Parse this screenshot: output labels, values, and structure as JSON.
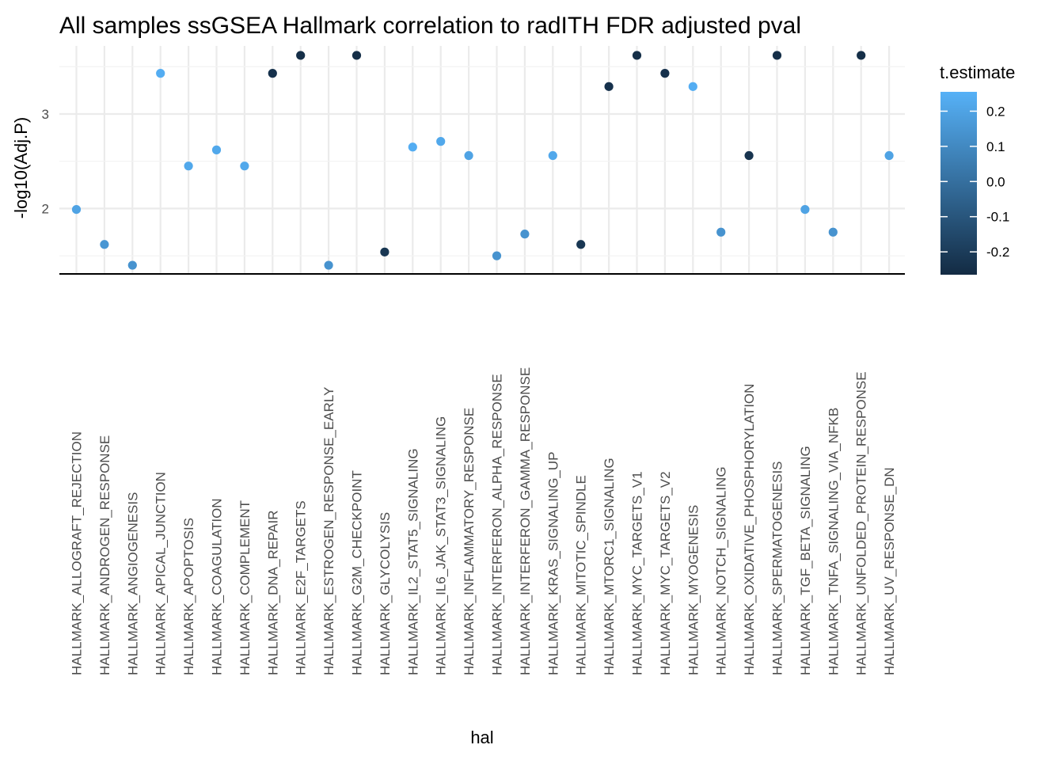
{
  "chart_data": {
    "type": "scatter",
    "title": "All samples ssGSEA Hallmark correlation to radITH FDR adjusted pval",
    "xlabel": "hal",
    "ylabel": "-log10(Adj.P)",
    "yticks": [
      2,
      3
    ],
    "ylim": [
      1.3,
      3.72
    ],
    "reference_line_y": 1.3,
    "grid": true,
    "legend": {
      "title": "t.estimate",
      "placement": "right",
      "min": -0.265,
      "max": 0.255,
      "ticks": [
        0.2,
        0.1,
        0.0,
        -0.1,
        -0.2
      ],
      "tick_labels": [
        "0.2",
        "0.1",
        "0.0",
        "-0.1",
        "-0.2"
      ],
      "low_color": "#132b43",
      "high_color": "#56b1f7"
    },
    "categories": [
      "HALLMARK_ALLOGRAFT_REJECTION",
      "HALLMARK_ANDROGEN_RESPONSE",
      "HALLMARK_ANGIOGENESIS",
      "HALLMARK_APICAL_JUNCTION",
      "HALLMARK_APOPTOSIS",
      "HALLMARK_COAGULATION",
      "HALLMARK_COMPLEMENT",
      "HALLMARK_DNA_REPAIR",
      "HALLMARK_E2F_TARGETS",
      "HALLMARK_ESTROGEN_RESPONSE_EARLY",
      "HALLMARK_G2M_CHECKPOINT",
      "HALLMARK_GLYCOLYSIS",
      "HALLMARK_IL2_STAT5_SIGNALING",
      "HALLMARK_IL6_JAK_STAT3_SIGNALING",
      "HALLMARK_INFLAMMATORY_RESPONSE",
      "HALLMARK_INTERFERON_ALPHA_RESPONSE",
      "HALLMARK_INTERFERON_GAMMA_RESPONSE",
      "HALLMARK_KRAS_SIGNALING_UP",
      "HALLMARK_MITOTIC_SPINDLE",
      "HALLMARK_MTORC1_SIGNALING",
      "HALLMARK_MYC_TARGETS_V1",
      "HALLMARK_MYC_TARGETS_V2",
      "HALLMARK_MYOGENESIS",
      "HALLMARK_NOTCH_SIGNALING",
      "HALLMARK_OXIDATIVE_PHOSPHORYLATION",
      "HALLMARK_SPERMATOGENESIS",
      "HALLMARK_TGF_BETA_SIGNALING",
      "HALLMARK_TNFA_SIGNALING_VIA_NFKB",
      "HALLMARK_UNFOLDED_PROTEIN_RESPONSE",
      "HALLMARK_UV_RESPONSE_DN"
    ],
    "values": [
      1.99,
      1.62,
      1.4,
      3.43,
      2.45,
      2.62,
      2.45,
      3.43,
      3.62,
      1.4,
      3.62,
      1.54,
      2.65,
      2.71,
      2.56,
      1.5,
      1.73,
      2.56,
      1.62,
      3.29,
      3.62,
      3.43,
      3.29,
      1.75,
      2.56,
      3.62,
      1.99,
      1.75,
      3.62,
      2.56
    ],
    "t_estimate": [
      0.2,
      0.15,
      0.14,
      0.24,
      0.22,
      0.22,
      0.22,
      -0.24,
      -0.25,
      0.14,
      -0.25,
      -0.22,
      0.24,
      0.22,
      0.2,
      0.14,
      0.14,
      0.22,
      -0.22,
      -0.24,
      -0.25,
      -0.24,
      0.24,
      0.14,
      -0.23,
      -0.25,
      0.2,
      0.14,
      -0.25,
      0.2
    ]
  }
}
